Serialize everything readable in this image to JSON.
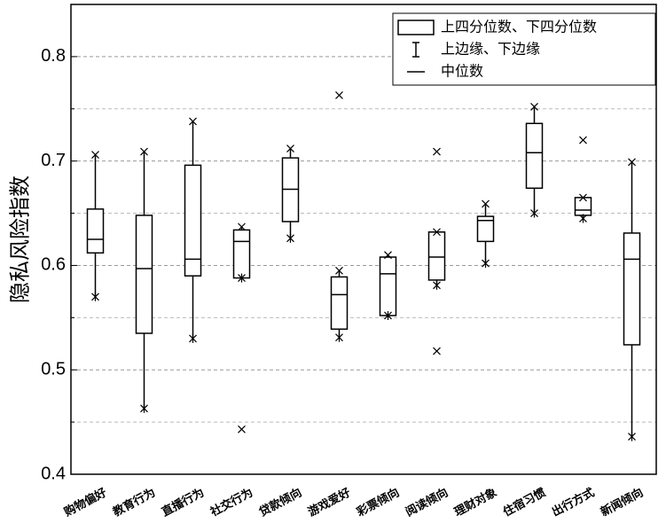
{
  "chart_data": {
    "type": "box",
    "y_label": "隐私风险指数",
    "categories": [
      "购物偏好",
      "教育行为",
      "直播行为",
      "社交行为",
      "贷款倾向",
      "游戏爱好",
      "彩票倾向",
      "阅读倾向",
      "理财对象",
      "住宿习惯",
      "出行方式",
      "新闻倾向"
    ],
    "boxes": [
      {
        "low": 0.57,
        "q1": 0.612,
        "median": 0.625,
        "q3": 0.654,
        "high": 0.706,
        "outliers": []
      },
      {
        "low": 0.463,
        "q1": 0.535,
        "median": 0.597,
        "q3": 0.648,
        "high": 0.709,
        "outliers": []
      },
      {
        "low": 0.53,
        "q1": 0.59,
        "median": 0.606,
        "q3": 0.696,
        "high": 0.738,
        "outliers": []
      },
      {
        "low": 0.588,
        "q1": 0.588,
        "median": 0.623,
        "q3": 0.634,
        "high": 0.637,
        "outliers": [
          0.443
        ]
      },
      {
        "low": 0.626,
        "q1": 0.642,
        "median": 0.673,
        "q3": 0.703,
        "high": 0.712,
        "outliers": []
      },
      {
        "low": 0.531,
        "q1": 0.539,
        "median": 0.572,
        "q3": 0.589,
        "high": 0.595,
        "outliers": [
          0.763
        ]
      },
      {
        "low": 0.552,
        "q1": 0.552,
        "median": 0.592,
        "q3": 0.608,
        "high": 0.61,
        "outliers": []
      },
      {
        "low": 0.581,
        "q1": 0.586,
        "median": 0.608,
        "q3": 0.632,
        "high": 0.632,
        "outliers": [
          0.709,
          0.518
        ]
      },
      {
        "low": 0.602,
        "q1": 0.623,
        "median": 0.643,
        "q3": 0.647,
        "high": 0.659,
        "outliers": []
      },
      {
        "low": 0.65,
        "q1": 0.674,
        "median": 0.708,
        "q3": 0.736,
        "high": 0.752,
        "outliers": []
      },
      {
        "low": 0.645,
        "q1": 0.648,
        "median": 0.653,
        "q3": 0.665,
        "high": 0.665,
        "outliers": [
          0.72
        ]
      },
      {
        "low": 0.436,
        "q1": 0.524,
        "median": 0.606,
        "q3": 0.631,
        "high": 0.699,
        "outliers": []
      }
    ],
    "color": "#000000",
    "ylim": [
      0.4,
      0.85
    ],
    "yticks": [
      0.4,
      0.5,
      0.6,
      0.7,
      0.8
    ],
    "minor_yticks": [
      0.45,
      0.55,
      0.65,
      0.75
    ],
    "grid": true,
    "legend": [
      "上四分位数、下四分位数",
      "上边缘、下边缘",
      "中位数"
    ],
    "legend_position": "upper right"
  }
}
